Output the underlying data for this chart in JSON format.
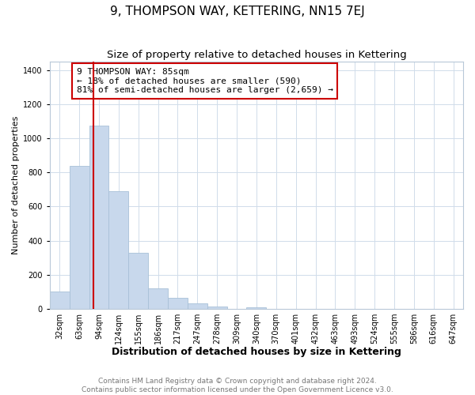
{
  "title": "9, THOMPSON WAY, KETTERING, NN15 7EJ",
  "subtitle": "Size of property relative to detached houses in Kettering",
  "xlabel": "Distribution of detached houses by size in Kettering",
  "ylabel": "Number of detached properties",
  "bar_labels": [
    "32sqm",
    "63sqm",
    "94sqm",
    "124sqm",
    "155sqm",
    "186sqm",
    "217sqm",
    "247sqm",
    "278sqm",
    "309sqm",
    "340sqm",
    "370sqm",
    "401sqm",
    "432sqm",
    "463sqm",
    "493sqm",
    "524sqm",
    "555sqm",
    "586sqm",
    "616sqm",
    "647sqm"
  ],
  "bar_values": [
    100,
    840,
    1075,
    690,
    328,
    120,
    63,
    30,
    12,
    0,
    10,
    0,
    0,
    0,
    0,
    0,
    0,
    0,
    0,
    0,
    0
  ],
  "bar_color": "#c8d8ec",
  "bar_edge_color": "#a8c0d8",
  "property_line_color": "#cc0000",
  "annotation_text": "9 THOMPSON WAY: 85sqm\n← 18% of detached houses are smaller (590)\n81% of semi-detached houses are larger (2,659) →",
  "annotation_box_color": "#ffffff",
  "annotation_box_edge": "#cc0000",
  "ylim": [
    0,
    1450
  ],
  "yticks": [
    0,
    200,
    400,
    600,
    800,
    1000,
    1200,
    1400
  ],
  "grid_color": "#d0dcea",
  "footer_line1": "Contains HM Land Registry data © Crown copyright and database right 2024.",
  "footer_line2": "Contains public sector information licensed under the Open Government Licence v3.0.",
  "title_fontsize": 11,
  "subtitle_fontsize": 9.5,
  "xlabel_fontsize": 9,
  "ylabel_fontsize": 8,
  "tick_fontsize": 7,
  "annotation_fontsize": 8,
  "footer_fontsize": 6.5
}
